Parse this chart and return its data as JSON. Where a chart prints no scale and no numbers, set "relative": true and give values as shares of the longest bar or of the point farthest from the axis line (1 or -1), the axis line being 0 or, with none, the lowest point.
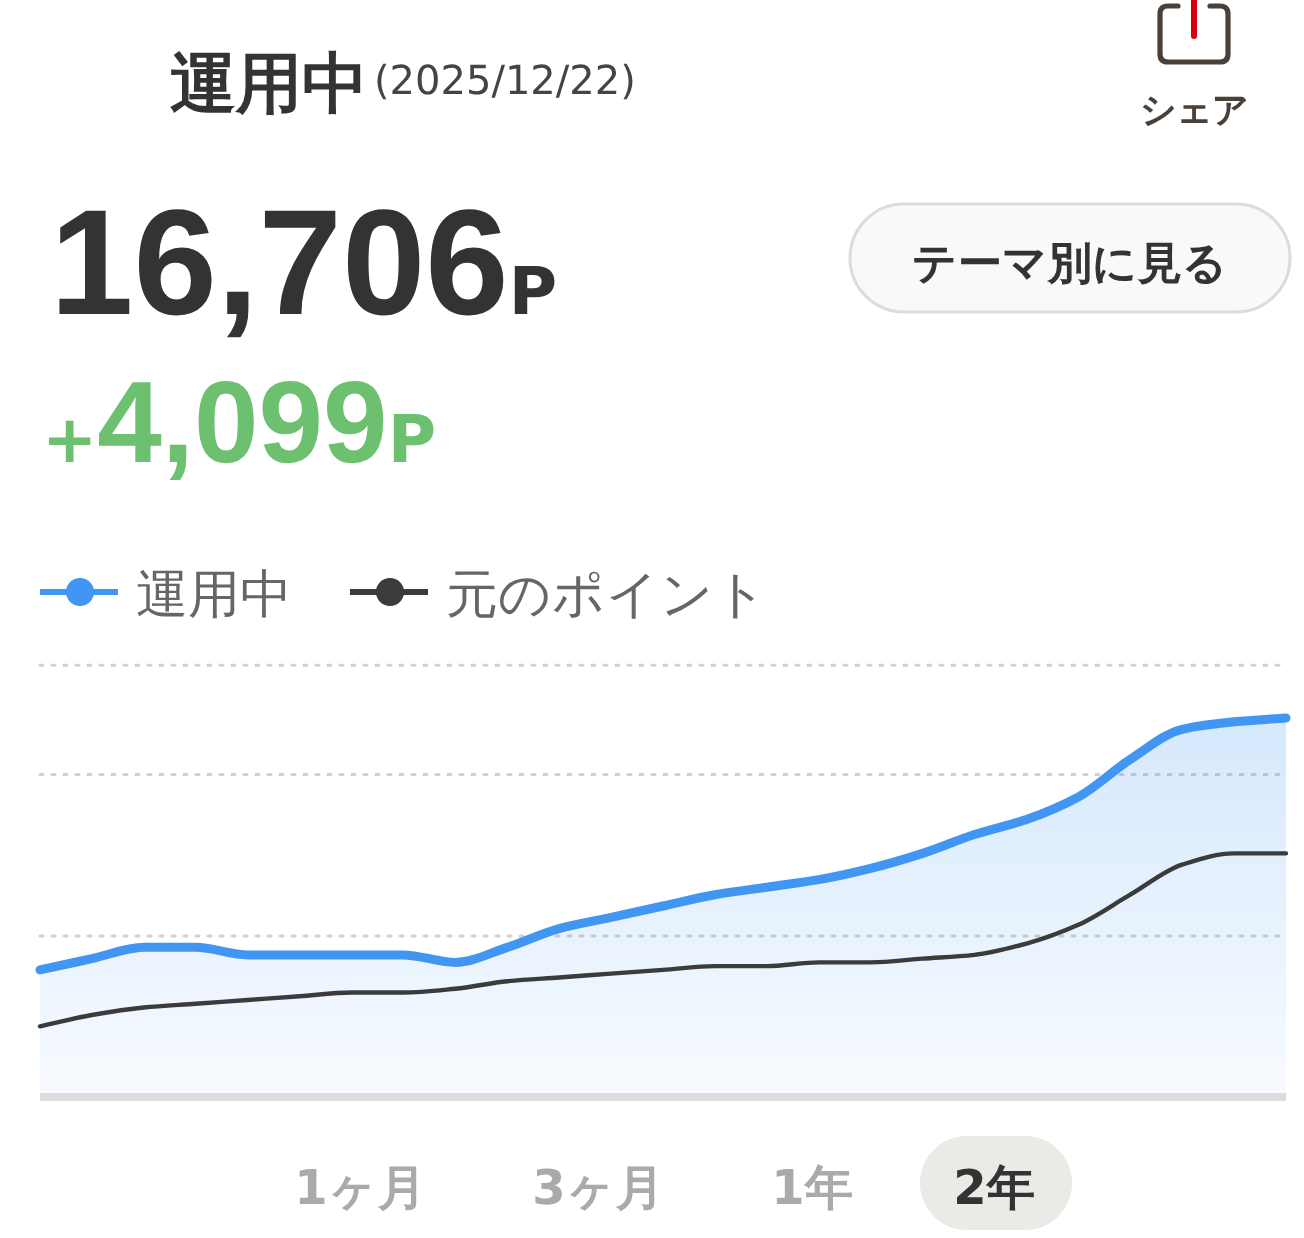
{
  "chart_data": {
    "type": "area",
    "title": "運用中",
    "subtitle": "(2025/12/22)",
    "categories": [
      null,
      null,
      null,
      null,
      null,
      null,
      null,
      null,
      null,
      null,
      null,
      null,
      null,
      null,
      null,
      null,
      null,
      null,
      null,
      null,
      null,
      null,
      null,
      null,
      null
    ],
    "relative": true,
    "series": [
      {
        "name": "運用中",
        "color": "#4196f4",
        "values": [
          0.33,
          0.36,
          0.39,
          0.39,
          0.37,
          0.37,
          0.37,
          0.37,
          0.35,
          0.39,
          0.44,
          0.47,
          0.5,
          0.53,
          0.55,
          0.57,
          0.6,
          0.64,
          0.69,
          0.73,
          0.79,
          0.89,
          0.97,
          0.99,
          1.0
        ]
      },
      {
        "name": "元のポイント",
        "type": "line",
        "color": "#3b3b3b",
        "values": [
          0.18,
          0.21,
          0.23,
          0.24,
          0.25,
          0.26,
          0.27,
          0.27,
          0.28,
          0.3,
          0.31,
          0.32,
          0.33,
          0.34,
          0.34,
          0.35,
          0.35,
          0.36,
          0.37,
          0.4,
          0.45,
          0.53,
          0.61,
          0.64,
          0.64
        ]
      }
    ],
    "ref_lines": [
      {
        "axis": "y",
        "value": 0.42,
        "color": "#d0d0d0",
        "line_style": "dotted"
      },
      {
        "axis": "y",
        "value": 0.85,
        "color": "#d0d0d0",
        "line_style": "dotted"
      },
      {
        "axis": "y",
        "value": 1.14,
        "color": "#d0d0d0",
        "line_style": "dotted"
      }
    ],
    "legend": "top left",
    "annotations": [
      "16,706P",
      "+4,099P",
      "シェア",
      "テーマ別に見る",
      "1ヶ月",
      "3ヶ月",
      "1年",
      "2年"
    ]
  }
}
